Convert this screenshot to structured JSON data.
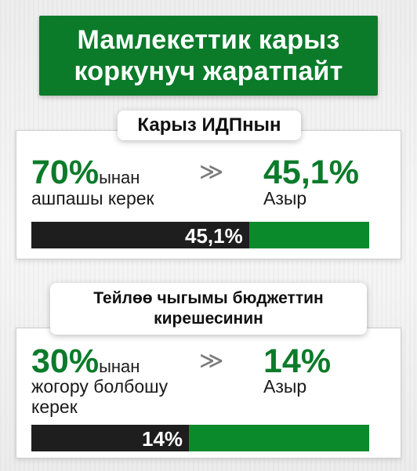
{
  "title": {
    "line1": "Мамлекеттик карыз",
    "line2": "коркунуч жаратпайт"
  },
  "colors": {
    "brand_green": "#0b7b2a",
    "bar_dark": "#1e1e1e",
    "bar_green": "#0b8a2c"
  },
  "section1": {
    "header": "Карыз ИДПнын",
    "threshold_value": "70%",
    "threshold_suffix": "ынан",
    "threshold_text": "ашпашы керек",
    "arrow": "≫",
    "current_value": "45,1%",
    "current_text": "Азыр",
    "bar_label": "45,1%",
    "bar_dark_share": 0.644
  },
  "section2": {
    "header_line1": "Тейлөө чыгымы бюджеттин",
    "header_line2": "кирешесинин",
    "threshold_value": "30%",
    "threshold_suffix": "ынан",
    "threshold_text_line1": "жогору болбошу",
    "threshold_text_line2": "керек",
    "arrow": "≫",
    "current_value": "14%",
    "current_text": "Азыр",
    "bar_label": "14%",
    "bar_dark_share": 0.467
  }
}
